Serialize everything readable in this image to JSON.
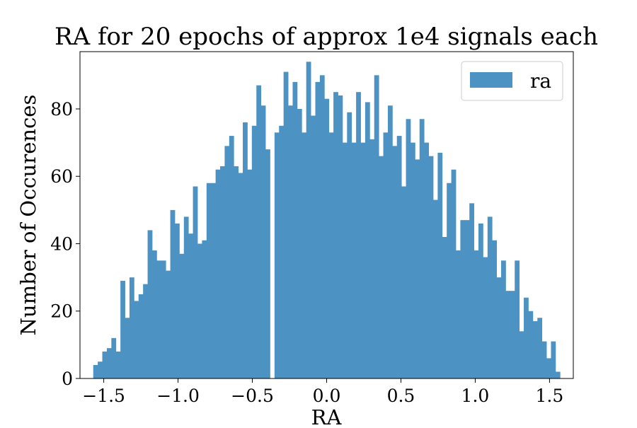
{
  "chart_data": {
    "type": "bar",
    "title": "RA for 20 epochs of approx 1e4 signals each",
    "xlabel": "RA",
    "ylabel": "Number of Occurences",
    "xlim": [
      -1.66,
      1.66
    ],
    "ylim": [
      0,
      97
    ],
    "x_ticks": [
      -1.5,
      -1.0,
      -0.5,
      0.0,
      0.5,
      1.0,
      1.5
    ],
    "x_tick_labels": [
      "−1.5",
      "−1.0",
      "−0.5",
      "0.0",
      "0.5",
      "1.0",
      "1.5"
    ],
    "y_ticks": [
      0,
      20,
      40,
      60,
      80
    ],
    "y_tick_labels": [
      "0",
      "20",
      "40",
      "60",
      "80"
    ],
    "grid": false,
    "legend_position": "top-right",
    "bin_start": -1.5708,
    "bin_end": 1.5708,
    "series": [
      {
        "name": "ra",
        "color": "#4c92c3",
        "values": [
          4,
          5,
          8,
          9,
          12,
          8,
          29,
          18,
          30,
          23,
          25,
          28,
          44,
          38,
          35,
          35,
          32,
          50,
          46,
          37,
          48,
          43,
          57,
          40,
          41,
          58,
          58,
          62,
          63,
          69,
          72,
          63,
          61,
          76,
          62,
          75,
          87,
          81,
          68,
          0,
          73,
          75,
          91,
          81,
          88,
          80,
          73,
          94,
          78,
          88,
          90,
          83,
          73,
          85,
          84,
          70,
          79,
          70,
          85,
          70,
          82,
          71,
          90,
          66,
          73,
          81,
          69,
          72,
          57,
          77,
          70,
          65,
          77,
          70,
          66,
          53,
          67,
          42,
          58,
          62,
          38,
          47,
          47,
          52,
          38,
          46,
          36,
          48,
          41,
          30,
          35,
          26,
          26,
          35,
          14,
          24,
          20,
          17,
          18,
          11,
          6,
          11,
          2
        ]
      }
    ]
  }
}
